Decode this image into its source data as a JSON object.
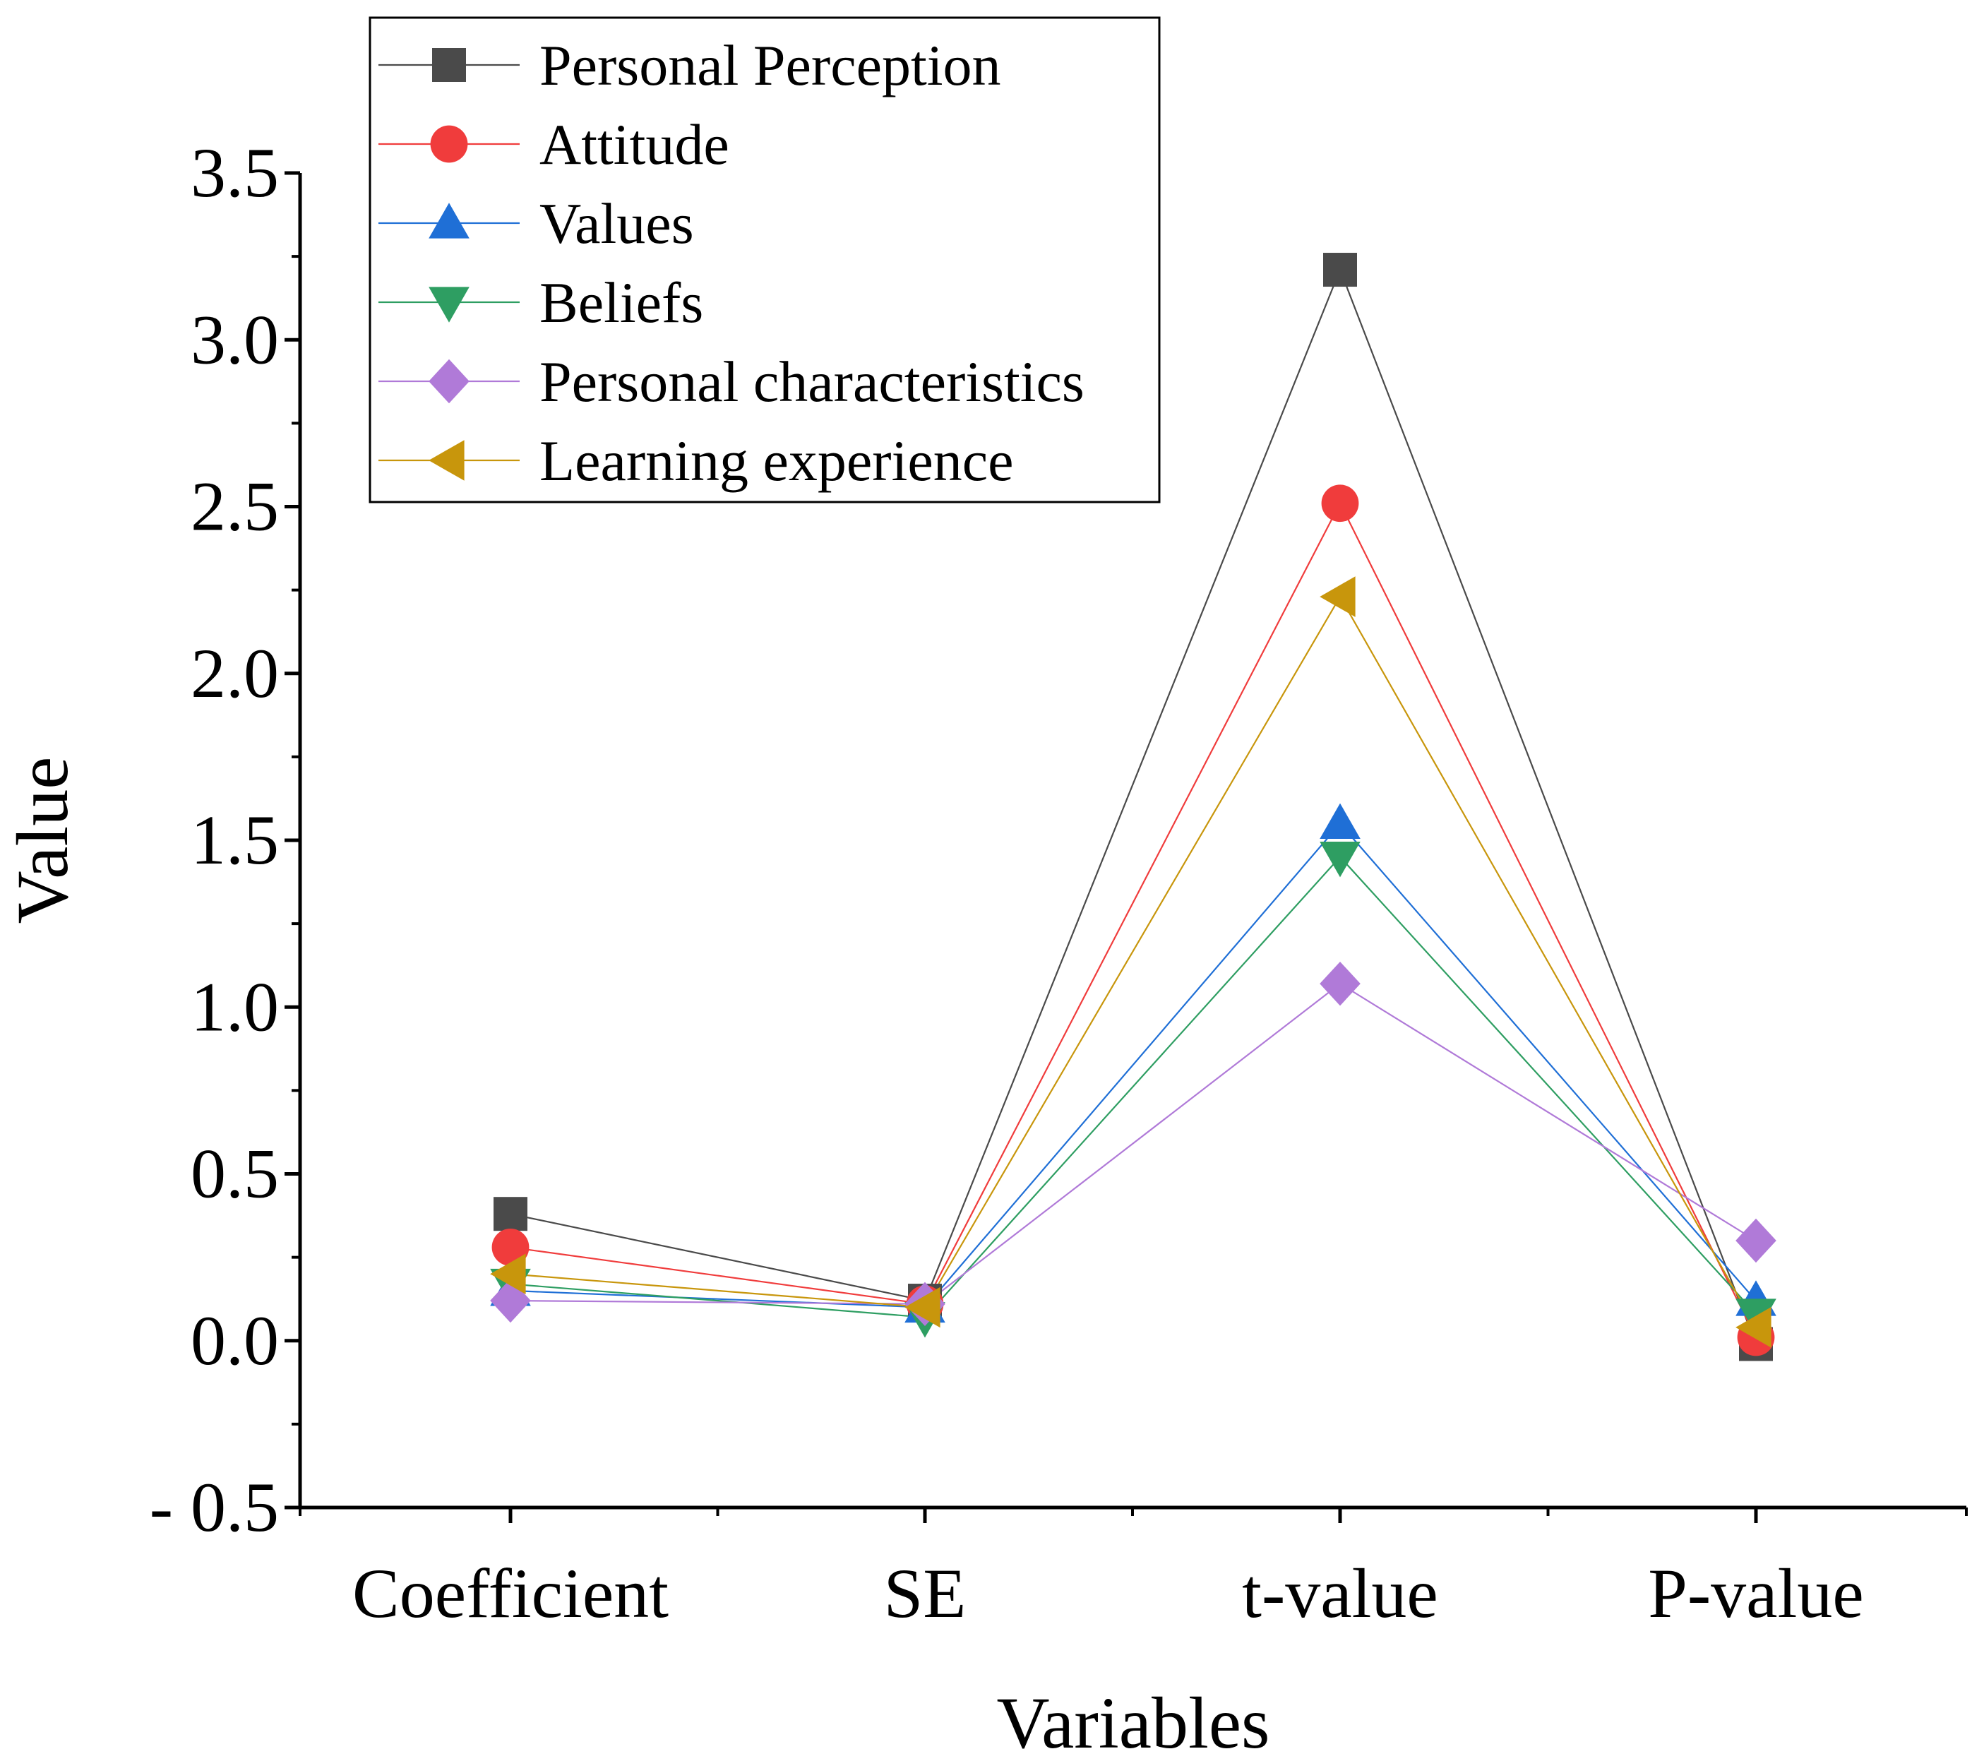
{
  "chart_data": {
    "type": "line",
    "title": "",
    "xlabel": "Variables",
    "ylabel": "Value",
    "categories": [
      "Coefficient",
      "SE",
      "t-value",
      "P-value"
    ],
    "ylim": [
      -0.5,
      3.5
    ],
    "yticks": [
      -0.5,
      0.0,
      0.5,
      1.0,
      1.5,
      2.0,
      2.5,
      3.0,
      3.5
    ],
    "ytick_labels": [
      "- 0.5",
      "0.0",
      "0.5",
      "1.0",
      "1.5",
      "2.0",
      "2.5",
      "3.0",
      "3.5"
    ],
    "grid": false,
    "legend_position": "top-left",
    "series": [
      {
        "name": "Personal Perception",
        "color": "#4a4a4a",
        "marker": "square",
        "values": [
          0.38,
          0.12,
          3.21,
          -0.01
        ]
      },
      {
        "name": "Attitude",
        "color": "#f03c3c",
        "marker": "circle",
        "values": [
          0.28,
          0.11,
          2.51,
          0.01
        ]
      },
      {
        "name": "Values",
        "color": "#1f6fd6",
        "marker": "triangle-up",
        "values": [
          0.15,
          0.1,
          1.55,
          0.12
        ]
      },
      {
        "name": "Beliefs",
        "color": "#2e9e62",
        "marker": "triangle-down",
        "values": [
          0.17,
          0.07,
          1.45,
          0.08
        ]
      },
      {
        "name": "Personal characteristics",
        "color": "#b07ad8",
        "marker": "diamond",
        "values": [
          0.12,
          0.11,
          1.07,
          0.3
        ]
      },
      {
        "name": "Learning experience",
        "color": "#c8960c",
        "marker": "triangle-left",
        "values": [
          0.2,
          0.1,
          2.23,
          0.04
        ]
      }
    ]
  }
}
